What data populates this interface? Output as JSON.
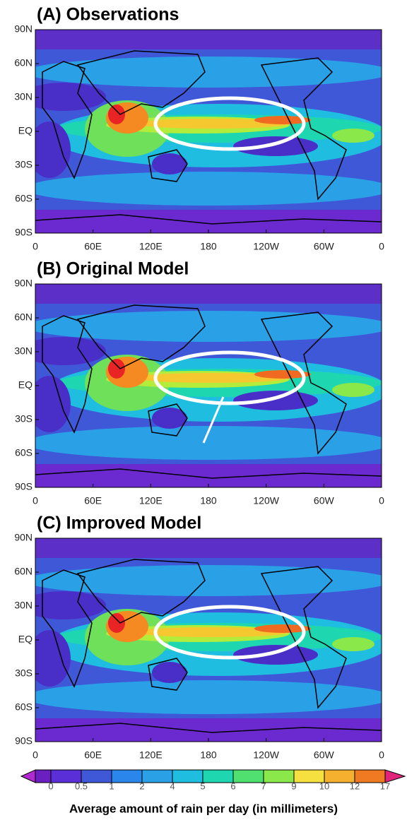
{
  "panels": [
    {
      "title": "(A) Observations"
    },
    {
      "title": "(B) Original Model"
    },
    {
      "title": "(C) Improved Model"
    }
  ],
  "lat_labels": [
    "90N",
    "60N",
    "30N",
    "EQ",
    "30S",
    "60S",
    "90S"
  ],
  "lon_labels": [
    "0",
    "60E",
    "120E",
    "180",
    "120W",
    "60W",
    "0"
  ],
  "colorbar": {
    "ticks": [
      0,
      0.5,
      1,
      2,
      4,
      5,
      6,
      7,
      9,
      10,
      12,
      17
    ],
    "title": "Average amount of rain per day (in millimeters)"
  }
}
